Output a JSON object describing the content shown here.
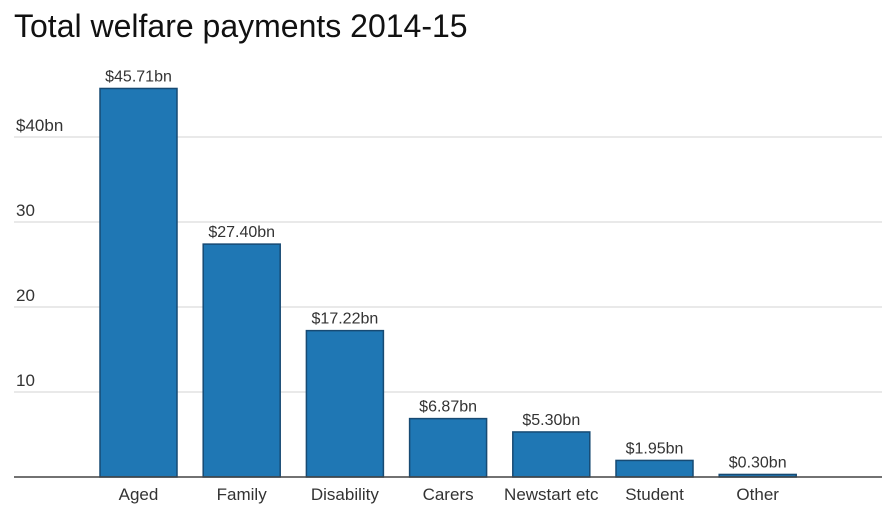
{
  "chart_data": {
    "type": "bar",
    "title": "Total welfare payments 2014-15",
    "xlabel": "",
    "ylabel": "",
    "categories": [
      "Aged",
      "Family",
      "Disability",
      "Carers",
      "Newstart etc",
      "Student",
      "Other"
    ],
    "values": [
      45.71,
      27.4,
      17.22,
      6.87,
      5.3,
      1.95,
      0.3
    ],
    "data_labels": [
      "$45.71bn",
      "$27.40bn",
      "$17.22bn",
      "$6.87bn",
      "$5.30bn",
      "$1.95bn",
      "$0.30bn"
    ],
    "ylim": [
      0,
      50
    ],
    "yticks": [
      10,
      20,
      30,
      40
    ],
    "ytick_labels": [
      "10",
      "20",
      "30",
      "$40bn"
    ],
    "grid": true,
    "legend": "none",
    "colors": {
      "bar_fill": "#1f77b4",
      "bar_stroke": "#174a73",
      "grid": "#d3d3d3",
      "axis": "#444444"
    }
  }
}
